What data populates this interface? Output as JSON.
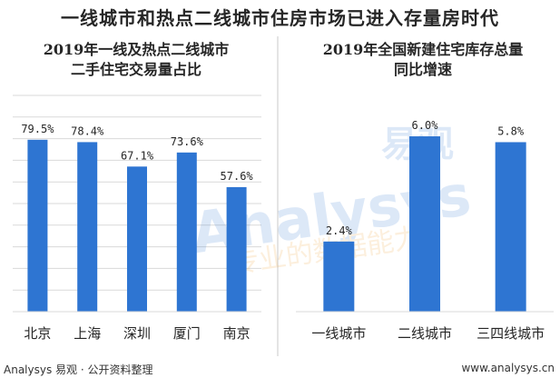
{
  "title": "一线城市和热点二线城市住房市场已进入存量房时代",
  "watermark": {
    "brand": "Analysys",
    "cn": "易观",
    "slogan": "专业的数据能力"
  },
  "footer": {
    "source": "Analysys 易观 · 公开资料整理",
    "url": "www.analysys.cn"
  },
  "colors": {
    "bar": "#2e75d2",
    "grid": "#d9d9d9",
    "divider": "#c8c8c8"
  },
  "chart_data": [
    {
      "type": "bar",
      "title": "2019年一线及热点二线城市二手住宅交易量占比",
      "title_lines": [
        "2019年一线及热点二线城市",
        "二手住宅交易量占比"
      ],
      "categories": [
        "北京",
        "上海",
        "深圳",
        "厦门",
        "南京"
      ],
      "values": [
        79.5,
        78.4,
        67.1,
        73.6,
        57.6
      ],
      "labels": [
        "79.5%",
        "78.4%",
        "67.1%",
        "73.6%",
        "57.6%"
      ],
      "unit": "%",
      "ylim": [
        0,
        100
      ],
      "grid": true
    },
    {
      "type": "bar",
      "title": "2019年全国新建住宅库存总量同比增速",
      "title_lines": [
        "2019年全国新建住宅库存总量",
        "同比增速"
      ],
      "categories": [
        "一线城市",
        "二线城市",
        "三四线城市"
      ],
      "values": [
        2.4,
        6.0,
        5.8
      ],
      "labels": [
        "2.4%",
        "6.0%",
        "5.8%"
      ],
      "unit": "%",
      "ylim": [
        0,
        7.4
      ],
      "grid": false
    }
  ]
}
